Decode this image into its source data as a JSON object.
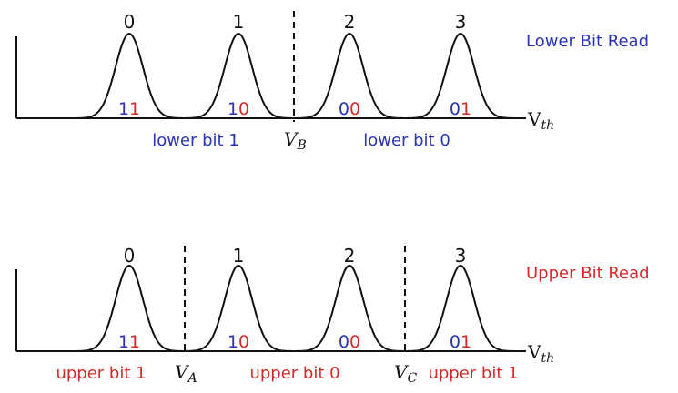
{
  "colors": {
    "blue": "#2a35b3",
    "red": "#d42a2a",
    "ink": "#111111"
  },
  "states": [
    "0",
    "1",
    "2",
    "3"
  ],
  "bit_pairs": [
    {
      "upper": "1",
      "lower": "1"
    },
    {
      "upper": "1",
      "lower": "0"
    },
    {
      "upper": "0",
      "lower": "0"
    },
    {
      "upper": "0",
      "lower": "1"
    }
  ],
  "axis": {
    "label_main": "V",
    "label_sub": "th"
  },
  "lower_panel": {
    "title": "Lower Bit Read",
    "threshold": {
      "main": "V",
      "sub": "B"
    },
    "regions": [
      "lower bit 1",
      "lower bit 0"
    ]
  },
  "upper_panel": {
    "title": "Upper Bit Read",
    "thresholds": [
      {
        "main": "V",
        "sub": "A"
      },
      {
        "main": "V",
        "sub": "C"
      }
    ],
    "regions": [
      "upper bit 1",
      "upper bit 0",
      "upper bit 1"
    ]
  }
}
